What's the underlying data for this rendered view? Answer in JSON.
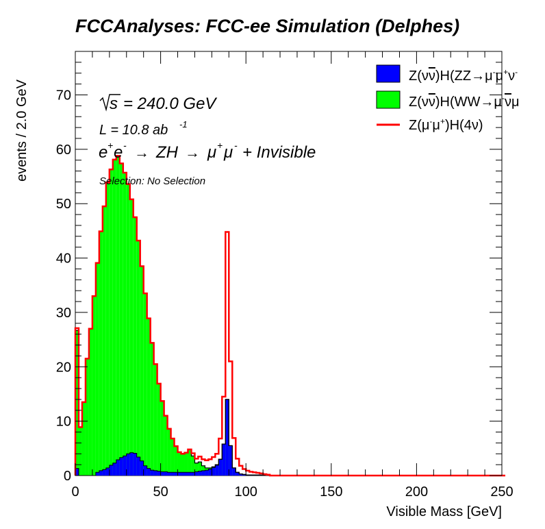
{
  "chart_data": {
    "type": "histogram",
    "title": "FCCAnalyses: FCC-ee Simulation (Delphes)",
    "xlabel": "Visible Mass [GeV]",
    "ylabel": "events / 2.0 GeV",
    "xlim": [
      0,
      250
    ],
    "ylim": [
      0,
      78
    ],
    "bin_width": 2.0,
    "x_ticks": [
      "0",
      "50",
      "100",
      "150",
      "200",
      "250"
    ],
    "y_ticks": [
      "0",
      "10",
      "20",
      "30",
      "40",
      "50",
      "60",
      "70"
    ],
    "annotations": {
      "sqrt_s": "= 240.0 GeV",
      "lumi": "L = 10.8 ab",
      "lumi_exp": "-1",
      "process_e1": "e",
      "process_e1_sup": "+",
      "process_e2": "e",
      "process_e2_sup": "-",
      "process_mid": "ZH",
      "process_mu1": "μ",
      "process_mu1_sup": "+",
      "process_mu2": "μ",
      "process_mu2_sup": "-",
      "process_tail": "+ Invisible",
      "selection": "Selection: No Selection"
    },
    "legend_position": "top-right",
    "series": [
      {
        "name": "Z(νν̄)H(ZZ→μ⁻μ⁺ν̄ν)",
        "color": "#0000ff",
        "stack": 1,
        "values": [
          1.3,
          0,
          0,
          0,
          0,
          0,
          0.6,
          0.9,
          1.1,
          1.4,
          1.9,
          2.3,
          2.9,
          3.3,
          3.6,
          4.0,
          4.2,
          4.1,
          3.4,
          2.7,
          1.8,
          1.3,
          1.0,
          0.9,
          0.8,
          0.7,
          0.7,
          0.6,
          0.6,
          0.6,
          0.6,
          0.6,
          0.6,
          0.6,
          0.6,
          0.7,
          0.8,
          0.9,
          1.0,
          1.2,
          1.5,
          1.9,
          3.0,
          5.8,
          14.0,
          5.5,
          1.4,
          0.6,
          0.3,
          0.2,
          0.1,
          0.1,
          0.1,
          0.1,
          0.1,
          0.05,
          0.05,
          0,
          0,
          0,
          0,
          0,
          0,
          0,
          0,
          0,
          0,
          0,
          0,
          0,
          0,
          0,
          0,
          0,
          0,
          0,
          0,
          0,
          0,
          0,
          0,
          0,
          0,
          0,
          0,
          0,
          0,
          0,
          0,
          0,
          0,
          0,
          0,
          0,
          0,
          0,
          0,
          0,
          0,
          0,
          0,
          0,
          0,
          0,
          0,
          0,
          0,
          0,
          0,
          0,
          0,
          0,
          0,
          0,
          0,
          0,
          0,
          0,
          0,
          0,
          0,
          0,
          0,
          0,
          0,
          0
        ]
      },
      {
        "name": "Z(νν̄)H(WW→μ⁻ν̄μ⁺ν)",
        "color": "#00ff00",
        "stack": 2,
        "values": [
          25.4,
          8.9,
          13.5,
          21.5,
          27.0,
          33.0,
          38.5,
          44.0,
          48.4,
          52.5,
          54.4,
          55.8,
          55.9,
          54.1,
          52.1,
          49.6,
          46.6,
          43.4,
          39.8,
          35.8,
          31.7,
          27.6,
          23.4,
          19.6,
          16.1,
          13.0,
          10.3,
          8.0,
          6.2,
          4.8,
          3.7,
          3.4,
          3.6,
          4.2,
          3.0,
          1.6,
          1.7,
          0.9,
          0.4,
          0.2,
          0.1,
          0.1,
          0,
          0,
          0,
          0,
          0,
          0,
          0,
          0,
          0,
          0,
          0,
          0,
          0,
          0,
          0,
          0,
          0,
          0,
          0,
          0,
          0,
          0,
          0,
          0,
          0,
          0,
          0,
          0,
          0,
          0,
          0,
          0,
          0,
          0,
          0,
          0,
          0,
          0,
          0,
          0,
          0,
          0,
          0,
          0,
          0,
          0,
          0,
          0,
          0,
          0,
          0,
          0,
          0,
          0,
          0,
          0,
          0,
          0,
          0,
          0,
          0,
          0,
          0,
          0,
          0,
          0,
          0,
          0,
          0,
          0,
          0,
          0,
          0,
          0,
          0,
          0,
          0,
          0,
          0,
          0,
          0,
          0,
          0,
          0
        ]
      },
      {
        "name": "Z(μ⁻μ⁺)H(4ν)",
        "color": "#ff0000",
        "line_only": true,
        "values": [
          0.4,
          0,
          0,
          0,
          0,
          0,
          0,
          0,
          0,
          0,
          0,
          0,
          0,
          0,
          0,
          0,
          0,
          0,
          0,
          0,
          0,
          0,
          0,
          0,
          0,
          0,
          0,
          0,
          0,
          0,
          0,
          0,
          0,
          0,
          0.5,
          0.8,
          1.0,
          1.2,
          1.4,
          1.6,
          1.8,
          2.0,
          3.8,
          8.7,
          30.8,
          15.5,
          5.5,
          2.5,
          1.5,
          1.0,
          0.8,
          0.6,
          0.5,
          0.4,
          0.3,
          0.2,
          0.1,
          0,
          0,
          0,
          0,
          0,
          0,
          0,
          0,
          0,
          0,
          0,
          0,
          0,
          0,
          0,
          0,
          0,
          0,
          0,
          0,
          0,
          0,
          0,
          0,
          0,
          0,
          0,
          0,
          0,
          0,
          0,
          0,
          0,
          0,
          0,
          0,
          0,
          0,
          0,
          0,
          0,
          0,
          0,
          0,
          0,
          0,
          0,
          0,
          0,
          0,
          0,
          0,
          0,
          0,
          0,
          0,
          0,
          0,
          0,
          0,
          0,
          0,
          0,
          0,
          0,
          0,
          0,
          0,
          0
        ]
      }
    ],
    "legend_entries": [
      {
        "label_a": "Z(ν",
        "label_bar": "ν",
        "label_b": ")H(ZZ",
        "label_arrow": "→",
        "label_c": "μ",
        "label_c_sup": "-",
        "label_d": "μ",
        "label_d_sup": "+",
        "label_e": "ν",
        "label_e_sup": "-"
      },
      {
        "label_a": "Z(ν",
        "label_bar": "ν",
        "label_b": ")H(WW",
        "label_arrow": "→",
        "label_c": "μ",
        "label_c_sup": "-",
        "label_d": "ν",
        "label_e": "μ"
      },
      {
        "label_a": "Z(μ",
        "label_a_sup": "-",
        "label_mid": "μ",
        "label_mid_sup": "+",
        "label_b": ")H(4ν",
        "label_c": ")"
      }
    ]
  }
}
